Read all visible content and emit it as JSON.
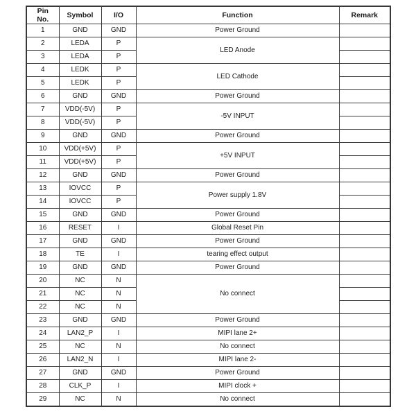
{
  "colors": {
    "background": "#ffffff",
    "border": "#3a3a3a",
    "text": "#1c1c1c"
  },
  "table": {
    "headers": {
      "pin": "Pin\nNo.",
      "symbol": "Symbol",
      "io": "I/O",
      "function": "Function",
      "remark": "Remark"
    },
    "rows": [
      {
        "pin": "1",
        "symbol": "GND",
        "io": "GND",
        "function": "Power Ground",
        "function_rowspan": 1,
        "remark": ""
      },
      {
        "pin": "2",
        "symbol": "LEDA",
        "io": "P",
        "function": "LED Anode",
        "function_rowspan": 2,
        "remark": ""
      },
      {
        "pin": "3",
        "symbol": "LEDA",
        "io": "P",
        "function": null,
        "function_rowspan": 0,
        "remark": ""
      },
      {
        "pin": "4",
        "symbol": "LEDK",
        "io": "P",
        "function": "LED Cathode",
        "function_rowspan": 2,
        "remark": ""
      },
      {
        "pin": "5",
        "symbol": "LEDK",
        "io": "P",
        "function": null,
        "function_rowspan": 0,
        "remark": ""
      },
      {
        "pin": "6",
        "symbol": "GND",
        "io": "GND",
        "function": "Power Ground",
        "function_rowspan": 1,
        "remark": ""
      },
      {
        "pin": "7",
        "symbol": "VDD(-5V)",
        "io": "P",
        "function": "-5V INPUT",
        "function_rowspan": 2,
        "remark": ""
      },
      {
        "pin": "8",
        "symbol": "VDD(-5V)",
        "io": "P",
        "function": null,
        "function_rowspan": 0,
        "remark": ""
      },
      {
        "pin": "9",
        "symbol": "GND",
        "io": "GND",
        "function": "Power Ground",
        "function_rowspan": 1,
        "remark": ""
      },
      {
        "pin": "10",
        "symbol": "VDD(+5V)",
        "io": "P",
        "function": "+5V INPUT",
        "function_rowspan": 2,
        "remark": ""
      },
      {
        "pin": "11",
        "symbol": "VDD(+5V)",
        "io": "P",
        "function": null,
        "function_rowspan": 0,
        "remark": ""
      },
      {
        "pin": "12",
        "symbol": "GND",
        "io": "GND",
        "function": "Power Ground",
        "function_rowspan": 1,
        "remark": ""
      },
      {
        "pin": "13",
        "symbol": "IOVCC",
        "io": "P",
        "function": "Power supply 1.8V",
        "function_rowspan": 2,
        "remark": ""
      },
      {
        "pin": "14",
        "symbol": "IOVCC",
        "io": "P",
        "function": null,
        "function_rowspan": 0,
        "remark": ""
      },
      {
        "pin": "15",
        "symbol": "GND",
        "io": "GND",
        "function": "Power Ground",
        "function_rowspan": 1,
        "remark": ""
      },
      {
        "pin": "16",
        "symbol": "RESET",
        "io": "I",
        "function": "Global Reset Pin",
        "function_rowspan": 1,
        "remark": ""
      },
      {
        "pin": "17",
        "symbol": "GND",
        "io": "GND",
        "function": "Power Ground",
        "function_rowspan": 1,
        "remark": ""
      },
      {
        "pin": "18",
        "symbol": "TE",
        "io": "I",
        "function": "tearing effect output",
        "function_rowspan": 1,
        "remark": ""
      },
      {
        "pin": "19",
        "symbol": "GND",
        "io": "GND",
        "function": "Power Ground",
        "function_rowspan": 1,
        "remark": ""
      },
      {
        "pin": "20",
        "symbol": "NC",
        "io": "N",
        "function": "No connect",
        "function_rowspan": 3,
        "remark": ""
      },
      {
        "pin": "21",
        "symbol": "NC",
        "io": "N",
        "function": null,
        "function_rowspan": 0,
        "remark": ""
      },
      {
        "pin": "22",
        "symbol": "NC",
        "io": "N",
        "function": null,
        "function_rowspan": 0,
        "remark": ""
      },
      {
        "pin": "23",
        "symbol": "GND",
        "io": "GND",
        "function": "Power Ground",
        "function_rowspan": 1,
        "remark": ""
      },
      {
        "pin": "24",
        "symbol": "LAN2_P",
        "io": "I",
        "function": "MIPI lane 2+",
        "function_rowspan": 1,
        "remark": ""
      },
      {
        "pin": "25",
        "symbol": "NC",
        "io": "N",
        "function": "No connect",
        "function_rowspan": 1,
        "remark": ""
      },
      {
        "pin": "26",
        "symbol": "LAN2_N",
        "io": "I",
        "function": "MIPI lane 2-",
        "function_rowspan": 1,
        "remark": ""
      },
      {
        "pin": "27",
        "symbol": "GND",
        "io": "GND",
        "function": "Power Ground",
        "function_rowspan": 1,
        "remark": ""
      },
      {
        "pin": "28",
        "symbol": "CLK_P",
        "io": "I",
        "function": "MIPI clock +",
        "function_rowspan": 1,
        "remark": ""
      },
      {
        "pin": "29",
        "symbol": "NC",
        "io": "N",
        "function": "No connect",
        "function_rowspan": 1,
        "remark": ""
      }
    ]
  }
}
